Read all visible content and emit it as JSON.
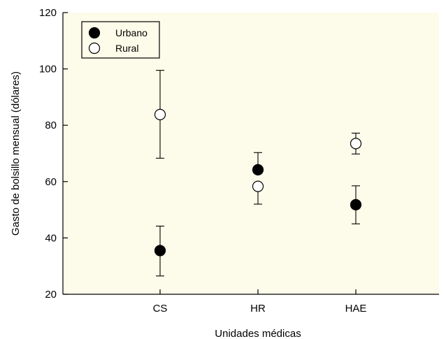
{
  "chart_data": {
    "type": "scatter",
    "xlabel": "Unidades médicas",
    "ylabel": "Gasto de bolsillo mensual (dólares)",
    "categories": [
      "CS",
      "HR",
      "HAE"
    ],
    "ylim": [
      20,
      120
    ],
    "yticks": [
      "20",
      "40",
      "60",
      "80",
      "100",
      "120"
    ],
    "grid": false,
    "legend_position": "top-left",
    "plot_background": "#fdfbe9",
    "series": [
      {
        "name": "Urbano",
        "marker": "filled-circle",
        "color": "#000000",
        "values": [
          35.5,
          64.2,
          51.8
        ],
        "err_low": [
          26.5,
          null,
          45.0
        ],
        "err_high": [
          44.2,
          70.3,
          58.5
        ]
      },
      {
        "name": "Rural",
        "marker": "open-circle",
        "color": "#000000",
        "values": [
          83.8,
          58.3,
          73.5
        ],
        "err_low": [
          68.3,
          52.0,
          69.8
        ],
        "err_high": [
          99.5,
          null,
          77.2
        ]
      }
    ]
  }
}
